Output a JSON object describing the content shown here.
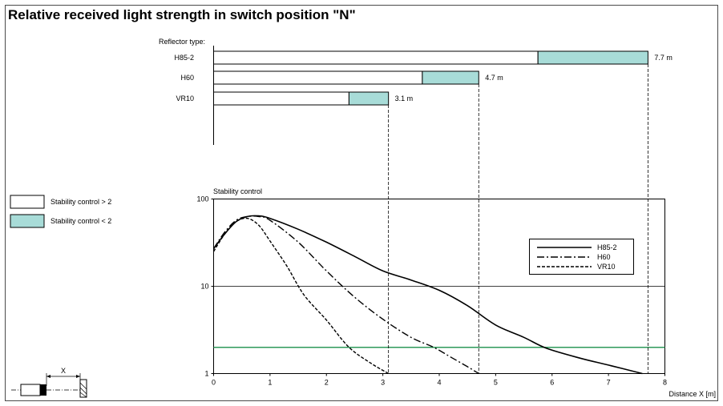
{
  "title": "Relative received light strength in switch position \"N\"",
  "colors": {
    "stable": "#ffffff",
    "unstable": "#a8dcd8",
    "threshold_line": "#2e9a5a",
    "axis": "#000000"
  },
  "legend": {
    "stable_label": "Stability control > 2",
    "unstable_label": "Stability control < 2"
  },
  "sketch": {
    "x_label": "X"
  },
  "chart_data": [
    {
      "type": "bar",
      "subtype": "stacked-horizontal",
      "axis_label": "Reflector type:",
      "categories": [
        "H85-2",
        "H60",
        "VR10"
      ],
      "series": [
        {
          "name": "Stability control > 2",
          "values": [
            5.75,
            3.7,
            2.4
          ]
        },
        {
          "name": "Stability control < 2",
          "values": [
            1.95,
            1.0,
            0.7
          ]
        }
      ],
      "value_labels": [
        "7.7 m",
        "4.7 m",
        "3.1 m"
      ],
      "totals": [
        7.7,
        4.7,
        3.1
      ]
    },
    {
      "type": "line",
      "title": "Stability control",
      "xlabel": "Distance X [m]",
      "ylabel": "",
      "xlim": [
        0,
        8
      ],
      "ylim": [
        1,
        100
      ],
      "yscale": "log",
      "x_ticks": [
        0,
        1,
        2,
        3,
        4,
        5,
        6,
        7,
        8
      ],
      "y_ticks": [
        1,
        10,
        100
      ],
      "threshold": 2,
      "legend_position": "right",
      "series": [
        {
          "name": "H85-2",
          "style": "solid",
          "points": [
            [
              0,
              27
            ],
            [
              0.2,
              40
            ],
            [
              0.4,
              55
            ],
            [
              0.6,
              63
            ],
            [
              0.8,
              64
            ],
            [
              1.0,
              60
            ],
            [
              1.5,
              45
            ],
            [
              2.0,
              32
            ],
            [
              2.5,
              22
            ],
            [
              3.0,
              15
            ],
            [
              3.5,
              11.8
            ],
            [
              4.0,
              9.0
            ],
            [
              4.5,
              6.0
            ],
            [
              5.0,
              3.6
            ],
            [
              5.5,
              2.6
            ],
            [
              5.9,
              1.95
            ],
            [
              6.5,
              1.5
            ],
            [
              7.0,
              1.25
            ],
            [
              7.6,
              1.0
            ]
          ]
        },
        {
          "name": "H60",
          "style": "dashdot",
          "points": [
            [
              0,
              27
            ],
            [
              0.2,
              42
            ],
            [
              0.4,
              57
            ],
            [
              0.6,
              63
            ],
            [
              0.8,
              63
            ],
            [
              1.0,
              57
            ],
            [
              1.5,
              32
            ],
            [
              2.0,
              15
            ],
            [
              2.5,
              7.5
            ],
            [
              3.0,
              4.2
            ],
            [
              3.5,
              2.6
            ],
            [
              3.9,
              2.0
            ],
            [
              4.2,
              1.55
            ],
            [
              4.5,
              1.2
            ],
            [
              4.7,
              1.0
            ]
          ]
        },
        {
          "name": "VR10",
          "style": "dashed",
          "points": [
            [
              0,
              25
            ],
            [
              0.2,
              40
            ],
            [
              0.4,
              55
            ],
            [
              0.6,
              60
            ],
            [
              0.8,
              50
            ],
            [
              1.0,
              33
            ],
            [
              1.3,
              17
            ],
            [
              1.6,
              8
            ],
            [
              2.0,
              4.1
            ],
            [
              2.4,
              2.0
            ],
            [
              2.8,
              1.3
            ],
            [
              3.1,
              1.0
            ]
          ]
        }
      ]
    }
  ]
}
